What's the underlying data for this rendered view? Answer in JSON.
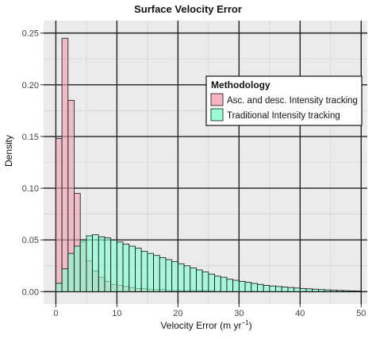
{
  "chart_data": {
    "type": "bar",
    "title": "Surface Velocity Error",
    "xlabel": "Velocity Error (m yr",
    "xlabel_sup": "−1",
    "xlabel_close": ")",
    "ylabel": "Density",
    "xlim": [
      -2,
      51
    ],
    "ylim": [
      -0.012,
      0.262
    ],
    "xticks": [
      0,
      10,
      20,
      30,
      40,
      50
    ],
    "yticks": [
      0.0,
      0.05,
      0.1,
      0.15,
      0.2,
      0.25
    ],
    "ytick_labels": [
      "0.00",
      "0.05",
      "0.10",
      "0.15",
      "0.20",
      "0.25"
    ],
    "bin_width": 1,
    "bin_starts": [
      0,
      1,
      2,
      3,
      4,
      5,
      6,
      7,
      8,
      9,
      10,
      11,
      12,
      13,
      14,
      15,
      16,
      17,
      18,
      19,
      20,
      21,
      22,
      23,
      24,
      25,
      26,
      27,
      28,
      29,
      30,
      31,
      32,
      33,
      34,
      35,
      36,
      37,
      38,
      39,
      40,
      41,
      42,
      43,
      44,
      45,
      46,
      47,
      48,
      49
    ],
    "legend": {
      "title": "Methodology",
      "placement": "top-right"
    },
    "grid": true,
    "series": [
      {
        "name": "Asc. and desc. Intensity tracking",
        "color": "#F4A0B2",
        "values": [
          0.148,
          0.245,
          0.185,
          0.095,
          0.048,
          0.03,
          0.02,
          0.014,
          0.01,
          0.007,
          0.006,
          0.005,
          0.004,
          0.003,
          0.003,
          0.002,
          0.002,
          0.002,
          0.001,
          0.001,
          0.001,
          0.001,
          0.001,
          0.001,
          0.001,
          0.001,
          0,
          0,
          0,
          0,
          0,
          0,
          0,
          0,
          0,
          0,
          0,
          0,
          0,
          0,
          0,
          0,
          0,
          0,
          0,
          0,
          0,
          0,
          0,
          0
        ]
      },
      {
        "name": "Traditional Intensity tracking",
        "color": "#7FFFD0",
        "values": [
          0.008,
          0.022,
          0.037,
          0.044,
          0.05,
          0.054,
          0.055,
          0.053,
          0.052,
          0.05,
          0.048,
          0.046,
          0.044,
          0.042,
          0.039,
          0.037,
          0.035,
          0.033,
          0.031,
          0.029,
          0.027,
          0.025,
          0.023,
          0.021,
          0.019,
          0.017,
          0.015,
          0.014,
          0.012,
          0.011,
          0.01,
          0.009,
          0.008,
          0.007,
          0.006,
          0.0055,
          0.005,
          0.0045,
          0.004,
          0.0035,
          0.003,
          0.0027,
          0.0024,
          0.002,
          0.0017,
          0.0014,
          0.0012,
          0.001,
          0.0008,
          0.0006
        ]
      }
    ]
  }
}
